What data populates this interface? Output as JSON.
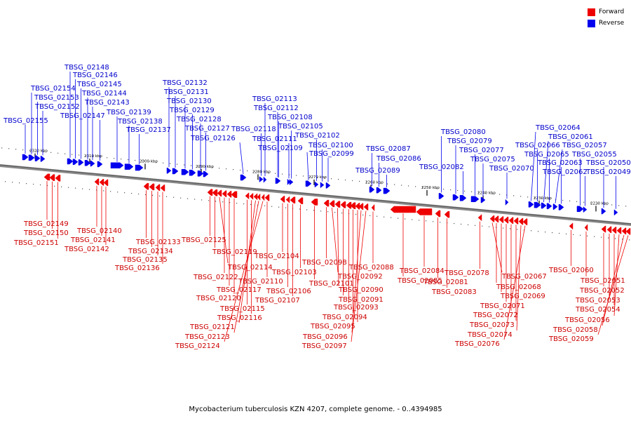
{
  "legend": {
    "forward_label": "Forward",
    "reverse_label": "Reverse",
    "forward_color": "#ee0000",
    "reverse_color": "#0000ee"
  },
  "caption": "Mycobacterium tuberculosis KZN 4207, complete genome. - 0..4394985",
  "scale_ticks": [
    "2320 kbp",
    "2310 kbp",
    "2300 kbp",
    "2290 kbp",
    "2280 kbp",
    "2270 kbp",
    "2260 kbp",
    "2250 kbp",
    "2240 kbp",
    "2230 kbp",
    "2220 kbp"
  ],
  "reverse_genes": [
    "TBSG_02155",
    "TBSG_02154",
    "TBSG_02153",
    "TBSG_02152",
    "TBSG_02148",
    "TBSG_02146",
    "TBSG_02145",
    "TBSG_02144",
    "TBSG_02143",
    "TBSG_02147",
    "TBSG_02139",
    "TBSG_02138",
    "TBSG_02137",
    "TBSG_02132",
    "TBSG_02131",
    "TBSG_02130",
    "TBSG_02129",
    "TBSG_02128",
    "TBSG_02127",
    "TBSG_02126",
    "TBSG_02118",
    "TBSG_02113",
    "TBSG_02112",
    "TBSG_02108",
    "TBSG_02111",
    "TBSG_02105",
    "TBSG_02109",
    "TBSG_02102",
    "TBSG_02100",
    "TBSG_02099",
    "TBSG_02087",
    "TBSG_02086",
    "TBSG_02089",
    "TBSG_02080",
    "TBSG_02079",
    "TBSG_02082",
    "TBSG_02077",
    "TBSG_02075",
    "TBSG_02070",
    "TBSG_02064",
    "TBSG_02066",
    "TBSG_02061",
    "TBSG_02065",
    "TBSG_02057",
    "TBSG_02063",
    "TBSG_02055",
    "TBSG_02062",
    "TBSG_02050",
    "TBSG_02049"
  ],
  "forward_genes": [
    "TBSG_02149",
    "TBSG_02150",
    "TBSG_02151",
    "TBSG_02140",
    "TBSG_02141",
    "TBSG_02142",
    "TBSG_02133",
    "TBSG_02134",
    "TBSG_02135",
    "TBSG_02136",
    "TBSG_02125",
    "TBSG_02119",
    "TBSG_02114",
    "TBSG_02122",
    "TBSG_02117",
    "TBSG_02120",
    "TBSG_02115",
    "TBSG_02116",
    "TBSG_02121",
    "TBSG_02123",
    "TBSG_02124",
    "TBSG_02110",
    "TBSG_02104",
    "TBSG_02106",
    "TBSG_02107",
    "TBSG_02103",
    "TBSG_02101",
    "TBSG_02098",
    "TBSG_02092",
    "TBSG_02090",
    "TBSG_02091",
    "TBSG_02093",
    "TBSG_02094",
    "TBSG_02095",
    "TBSG_02096",
    "TBSG_02097",
    "TBSG_02088",
    "TBSG_02085",
    "TBSG_02084",
    "TBSG_02081",
    "TBSG_02083",
    "TBSG_02078",
    "TBSG_02067",
    "TBSG_02068",
    "TBSG_02069",
    "TBSG_02071",
    "TBSG_02072",
    "TBSG_02073",
    "TBSG_02074",
    "TBSG_02076",
    "TBSG_02060",
    "TBSG_02051",
    "TBSG_02052",
    "TBSG_02053",
    "TBSG_02054",
    "TBSG_02056",
    "TBSG_02058",
    "TBSG_02059"
  ]
}
